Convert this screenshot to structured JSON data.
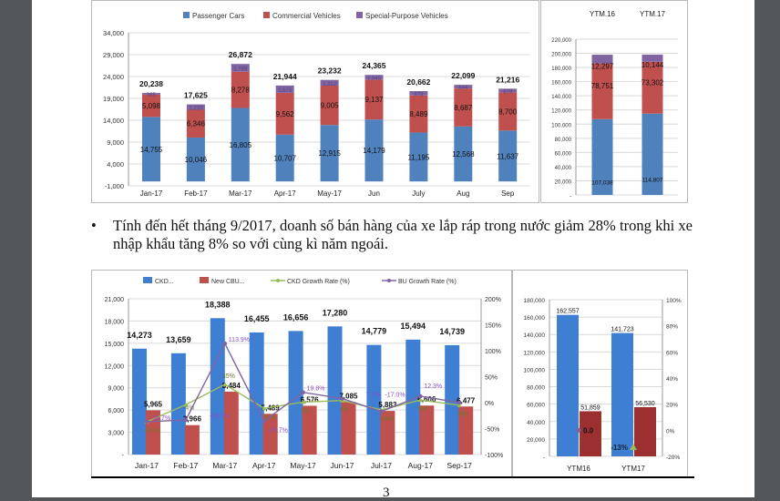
{
  "document": {
    "bullet_symbol": "•",
    "bullet_text": "Tính đến hết tháng 9/2017, doanh số bán hàng của xe lắp ráp trong nước giảm 28% trong khi xe nhập khẩu tăng 8% so với cùng kì năm ngoái.",
    "page_number": "3"
  },
  "colors": {
    "blue": "#4f81bd",
    "red": "#c0504d",
    "purple": "#8064a2",
    "blue2": "#3f7fd3",
    "red2": "#c0504d",
    "darkred": "#9c2f2f",
    "green": "#9bbb59"
  },
  "chart_data": [
    {
      "type": "bar",
      "stacked": true,
      "title": "",
      "categories": [
        "Jan-17",
        "Feb-17",
        "Mar-17",
        "Apr-17",
        "May-17",
        "Jun",
        "July",
        "Aug",
        "Sep"
      ],
      "series": [
        {
          "name": "Passenger Cars",
          "values": [
            14755,
            10046,
            16805,
            10707,
            12915,
            14179,
            11195,
            12568,
            11637
          ]
        },
        {
          "name": "Commercial Vehicles",
          "values": [
            5098,
            6346,
            8278,
            9562,
            9005,
            9137,
            8489,
            8687,
            8700
          ]
        },
        {
          "name": "Special-Purpose Vehicles",
          "values": [
            385,
            1233,
            1789,
            1675,
            1312,
            1049,
            978,
            844,
            879
          ]
        }
      ],
      "totals": [
        20238,
        17625,
        26872,
        21944,
        23232,
        24365,
        20662,
        22099,
        21216
      ],
      "yticks": [
        "34,000",
        "29,000",
        "24,000",
        "19,000",
        "14,000",
        "9,000",
        "4,000",
        "-1,000"
      ],
      "ylim": [
        -1000,
        34000
      ],
      "legend": "top"
    },
    {
      "type": "bar",
      "stacked": true,
      "categories": [
        "YTM.16",
        "YTM.17"
      ],
      "series": [
        {
          "name": "Passenger Cars",
          "values": [
            107038,
            114807
          ]
        },
        {
          "name": "Commercial Vehicles",
          "values": [
            78751,
            73302
          ]
        },
        {
          "name": "Special-Purpose Vehicles",
          "values": [
            12297,
            10144
          ]
        }
      ],
      "yticks": [
        "220,000",
        "200,000",
        "180,000",
        "160,000",
        "140,000",
        "120,000",
        "100,000",
        "80,000",
        "60,000",
        "40,000",
        "20,000",
        "-"
      ],
      "ylim": [
        0,
        220000
      ]
    },
    {
      "type": "bar",
      "categories": [
        "Jan-17",
        "Feb-17",
        "Mar-17",
        "Apr-17",
        "May-17",
        "Jun-17",
        "Jul-17",
        "Aug-17",
        "Sep-17"
      ],
      "series": [
        {
          "name": "CKD...",
          "values": [
            14273,
            13659,
            18388,
            16455,
            16656,
            17280,
            14779,
            15494,
            14739
          ]
        },
        {
          "name": "New CBU...",
          "values": [
            5965,
            3966,
            8484,
            5489,
            6576,
            7085,
            5883,
            6606,
            6477
          ]
        },
        {
          "name": "CKD Growth Rate (%)",
          "type": "line",
          "values": [
            -37,
            -4,
            35,
            -11,
            1,
            4,
            -14,
            5,
            -5
          ],
          "labels": [
            "-37%",
            "-4%",
            "35%",
            "-11%",
            "1%",
            "4%",
            "-14%",
            "5%",
            "-5%"
          ]
        },
        {
          "name": "BU Growth Rate (%)",
          "type": "line",
          "values": [
            -36.7,
            -33.5,
            113.9,
            -35.7,
            19.8,
            7.7,
            -17.0,
            12.3,
            0
          ],
          "labels": [
            "-36.7%",
            "-33.5%",
            "113.9%",
            "-35.7%",
            "19.8%",
            "7.7%",
            "-17.0%",
            "12.3%",
            ""
          ]
        }
      ],
      "yticks": [
        "21,000",
        "18,000",
        "15,000",
        "12,000",
        "9,000",
        "6,000",
        "3,000",
        "-"
      ],
      "ylim": [
        0,
        21000
      ],
      "y2ticks": [
        "200%",
        "150%",
        "100%",
        "50%",
        "0%",
        "-50%",
        "-100%"
      ],
      "y2lim": [
        -100,
        200
      ],
      "legend": "top"
    },
    {
      "type": "bar",
      "categories": [
        "YTM16",
        "YTM17"
      ],
      "series": [
        {
          "name": "CKD",
          "values": [
            162557,
            141723
          ]
        },
        {
          "name": "New CBU",
          "values": [
            51859,
            56530
          ]
        },
        {
          "name": "BU Growth Rate (%)",
          "type": "point",
          "values": [
            0.0,
            null
          ],
          "labels": [
            "0.0",
            ""
          ]
        },
        {
          "name": "CKD Growth Rate (%)",
          "type": "point",
          "values": [
            null,
            -13
          ],
          "labels": [
            "",
            "-13%"
          ]
        }
      ],
      "yticks": [
        "180,000",
        "160,000",
        "140,000",
        "120,000",
        "100,000",
        "80,000",
        "60,000",
        "40,000",
        "20,000",
        "-"
      ],
      "ylim": [
        0,
        180000
      ],
      "y2ticks": [
        "100%",
        "80%",
        "60%",
        "40%",
        "20%",
        "0%",
        "-20%"
      ],
      "y2lim": [
        -20,
        100
      ]
    }
  ]
}
